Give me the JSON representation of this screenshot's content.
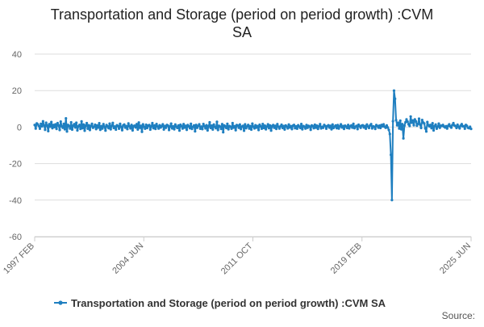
{
  "chart_data": {
    "type": "line",
    "title_lines": [
      "Transportation and Storage (period on period growth) :CVM",
      "SA"
    ],
    "y_ticks": [
      40,
      20,
      0,
      -20,
      -40,
      -60
    ],
    "ylim": [
      -60,
      40
    ],
    "x_ticks": [
      "1997 FEB",
      "2004 JUN",
      "2011 OCT",
      "2019 FEB",
      "2025 JUN"
    ],
    "grid": true,
    "legend_position": "bottom",
    "series": [
      {
        "name": "Transportation and Storage (period on period growth) :CVM SA",
        "color": "#1f7fc0",
        "values": [
          1.2,
          -0.8,
          2.0,
          1.5,
          0.6,
          -0.9,
          1.8,
          0.4,
          3.2,
          1.0,
          -1.5,
          2.4,
          0.8,
          -2.2,
          1.6,
          0.3,
          2.8,
          -0.6,
          1.2,
          0.0,
          1.5,
          -1.0,
          2.2,
          0.9,
          -1.6,
          3.0,
          0.5,
          -0.4,
          1.8,
          -1.2,
          4.8,
          -2.4,
          1.2,
          0.6,
          -0.8,
          2.6,
          -1.4,
          0.8,
          1.6,
          -0.2,
          2.4,
          -1.8,
          0.4,
          1.2,
          -1.0,
          3.1,
          -0.6,
          1.4,
          -2.0,
          0.8,
          2.2,
          -0.9,
          1.0,
          -1.6,
          0.6,
          1.8,
          -0.4,
          0.2,
          1.3,
          -1.1,
          0.9,
          -0.3,
          2.1,
          -1.5,
          0.5,
          -0.8,
          1.6,
          0.2,
          -1.9,
          1.1,
          0.4,
          -0.6,
          1.9,
          -1.2,
          0.7,
          2.3,
          -0.5,
          0.3,
          -1.4,
          1.0,
          0.6,
          -0.9,
          1.8,
          0.1,
          -1.7,
          0.9,
          1.4,
          -0.3,
          0.6,
          -1.1,
          2.0,
          0.4,
          -0.7,
          1.2,
          -1.8,
          0.5,
          0.8,
          -0.2,
          1.6,
          -1.3,
          2.5,
          -0.4,
          0.7,
          -2.6,
          1.5,
          0.2,
          -0.9,
          1.3,
          -0.5,
          0.8,
          1.1,
          -1.4,
          0.4,
          2.2,
          -0.6,
          0.9,
          -1.0,
          1.7,
          0.3,
          -0.8,
          1.0,
          -0.2,
          0.5,
          1.5,
          -1.3,
          0.6,
          -0.4,
          1.2,
          0.8,
          -1.6,
          0.3,
          1.9,
          -0.7,
          0.4,
          -1.2,
          1.4,
          0.2,
          -0.5,
          0.9,
          -1.9,
          1.3,
          0.5,
          -0.8,
          1.6,
          -0.3,
          0.7,
          -1.5,
          1.1,
          0.4,
          -0.6,
          1.8,
          -1.0,
          0.2,
          0.9,
          -2.3,
          1.2,
          -0.4,
          0.6,
          1.5,
          -0.9,
          0.3,
          -1.1,
          1.7,
          0.5,
          -0.7,
          1.0,
          -1.8,
          0.4,
          2.6,
          -0.5,
          0.8,
          -1.3,
          1.4,
          0.1,
          -0.6,
          2.9,
          -1.6,
          0.7,
          0.3,
          -1.0,
          1.6,
          -2.8,
          0.9,
          0.4,
          -0.5,
          1.8,
          -1.2,
          0.6,
          0.2,
          -0.9,
          2.2,
          -0.3,
          0.5,
          -1.7,
          1.1,
          0.8,
          -0.4,
          1.4,
          -1.1,
          0.3,
          0.7,
          -2.0,
          1.5,
          -0.6,
          0.4,
          1.2,
          -0.8,
          0.5,
          -1.4,
          1.9,
          0.2,
          -0.7,
          1.0,
          -0.3,
          0.6,
          -1.6,
          1.3,
          0.4,
          -0.9,
          1.7,
          -0.5,
          0.8,
          -1.2,
          0.3,
          1.5,
          -0.6,
          0.9,
          -1.9,
          0.5,
          1.1,
          -0.4,
          0.7,
          -1.0,
          1.6,
          0.2,
          -0.8,
          0.4,
          1.3,
          -0.5,
          0.6,
          -1.3,
          0.9,
          0.3,
          -0.7,
          1.4,
          -0.2,
          0.5,
          -1.1,
          0.8,
          1.2,
          -0.6,
          0.4,
          -0.9,
          1.0,
          0.3,
          -0.5,
          1.7,
          -1.2,
          0.6,
          0.2,
          -0.8,
          1.1,
          -0.4,
          0.7,
          0.3,
          -1.5,
          0.9,
          0.5,
          -0.6,
          1.3,
          -0.3,
          0.8,
          -1.0,
          0.4,
          1.6,
          -0.7,
          0.2,
          -0.4,
          1.2,
          0.6,
          -0.9,
          0.5,
          1.0,
          -0.3,
          0.7,
          -1.2,
          1.4,
          -0.5,
          0.3,
          0.9,
          -0.6,
          1.1,
          -0.8,
          0.4,
          1.5,
          -0.2,
          0.6,
          -1.0,
          0.8,
          0.3,
          -0.5,
          1.2,
          -0.7,
          0.4,
          0.9,
          -0.3,
          1.8,
          -0.6,
          0.2,
          0.7,
          -1.1,
          1.3,
          0.5,
          -0.4,
          0.8,
          1.0,
          -0.2,
          0.6,
          -0.9,
          1.4,
          0.3,
          -0.5,
          0.9,
          1.6,
          -0.7,
          0.4,
          0.2,
          -1.0,
          1.1,
          0.6,
          -0.3,
          0.8,
          -0.5,
          1.2,
          0.4,
          1.5,
          0.2,
          -0.4,
          0.9,
          -0.2,
          -1.5,
          -3.8,
          -15.2,
          -40.0,
          3.2,
          20.0,
          15.5,
          3.8,
          1.0,
          2.4,
          -0.8,
          3.5,
          -1.2,
          1.6,
          -6.2,
          0.8,
          2.6,
          4.2,
          3.0,
          1.5,
          0.6,
          5.8,
          2.4,
          3.6,
          1.0,
          4.2,
          3.2,
          0.8,
          1.8,
          4.6,
          1.4,
          -0.5,
          3.9,
          2.5,
          2.0,
          -0.7,
          -2.4,
          2.8,
          1.0,
          0.4,
          1.2,
          -0.6,
          2.1,
          -1.8,
          0.5,
          1.4,
          -0.9,
          0.3,
          1.9,
          -0.4,
          0.8,
          0.6,
          1.2,
          0.3,
          -0.2,
          0.5,
          -0.8,
          0.7,
          1.5,
          0.4,
          -0.3,
          1.1,
          2.2,
          0.9,
          0.6,
          -0.5,
          1.3,
          0.2,
          -0.7,
          0.8,
          1.6,
          0.4,
          0.5,
          -0.9,
          1.2,
          0.7,
          -0.4,
          -0.6,
          0.2,
          -1.0
        ]
      }
    ]
  },
  "source_label": "Source:"
}
